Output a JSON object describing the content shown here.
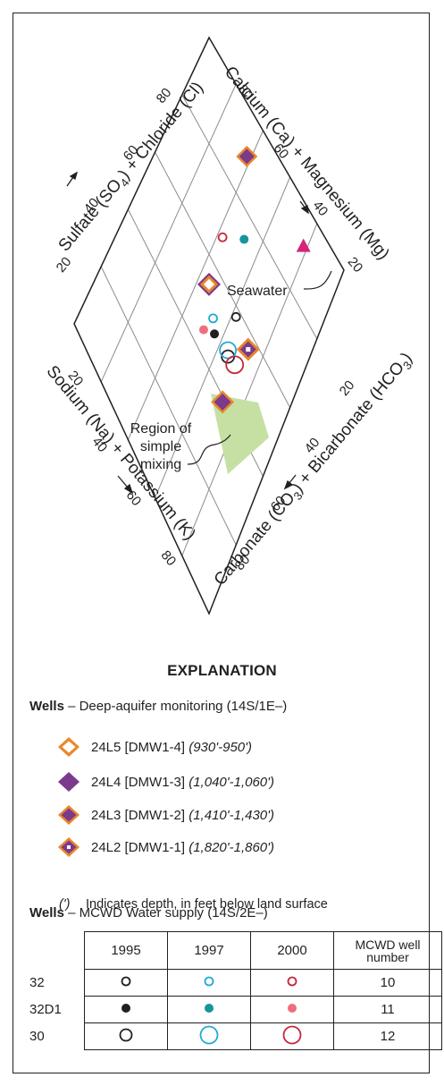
{
  "chart_data": {
    "type": "piper-diamond",
    "axes": {
      "upper_left": "Sulfate (SO4) + Chloride (Cl)",
      "upper_right": "Calcium (Ca) + Magnesium (Mg)",
      "lower_left": "Sodium (Na) + Potassium (K)",
      "lower_right": "Carbonate (CO3) + Bicarbonate (HCO3)"
    },
    "ticks": {
      "upper_left": [
        "20",
        "40",
        "60",
        "80"
      ],
      "upper_right": [
        "80",
        "60",
        "40",
        "20"
      ],
      "lower_left": [
        "20",
        "40",
        "60",
        "80"
      ],
      "lower_right": [
        "20",
        "40",
        "60",
        "80"
      ]
    },
    "annotations": {
      "seawater": "Seawater",
      "mixing": [
        "Region of",
        "simple",
        "mixing"
      ]
    },
    "points": [
      {
        "id": "24L5",
        "symbol": "diamond-open-orange-purple",
        "so4_cl": 52,
        "ca_mg": 52
      },
      {
        "id": "24L4",
        "symbol": "diamond-purple-orange",
        "so4_cl": 38,
        "ca_mg": 28
      },
      {
        "id": "24L3",
        "symbol": "diamond-orange-purple",
        "so4_cl": 85,
        "ca_mg": 57
      },
      {
        "id": "24L2",
        "symbol": "diamond-orange-white-dot",
        "so4_cl": 55,
        "ca_mg": 26
      },
      {
        "id": "Seawater",
        "symbol": "triangle-magenta",
        "so4_cl": 90,
        "ca_mg": 20
      },
      {
        "id": "32-1995",
        "symbol": "circle-small-black",
        "so4_cl": 56,
        "ca_mg": 36
      },
      {
        "id": "32-1997",
        "symbol": "circle-small-cyan",
        "so4_cl": 48,
        "ca_mg": 45
      },
      {
        "id": "32-2000",
        "symbol": "circle-small-red",
        "so4_cl": 64,
        "ca_mg": 54
      },
      {
        "id": "32D1-1995",
        "symbol": "dot-black",
        "so4_cl": 46,
        "ca_mg": 42
      },
      {
        "id": "32D1-1997",
        "symbol": "dot-teal",
        "so4_cl": 71,
        "ca_mg": 45
      },
      {
        "id": "32D1-2000",
        "symbol": "dot-pink",
        "so4_cl": 43,
        "ca_mg": 47
      },
      {
        "id": "30-1995",
        "symbol": "circle-large-black",
        "so4_cl": 47,
        "ca_mg": 33
      },
      {
        "id": "30-1997",
        "symbol": "circle-large-cyan",
        "so4_cl": 48,
        "ca_mg": 34
      },
      {
        "id": "30-2000",
        "symbol": "circle-large-red",
        "so4_cl": 48,
        "ca_mg": 29
      }
    ]
  },
  "explanation": {
    "title": "EXPLANATION",
    "wells1_bold": "Wells",
    "wells1_rest": " – Deep-aquifer monitoring (14S/1E–)",
    "legend": [
      {
        "symbol": "diamond-open-orange-purple",
        "label": "24L5 [DMW1-4]",
        "depth": "(930'-950')"
      },
      {
        "symbol": "diamond-purple-orange",
        "label": "24L4 [DMW1-3]",
        "depth": "(1,040'-1,060')"
      },
      {
        "symbol": "diamond-orange-purple",
        "label": "24L3 [DMW1-2]",
        "depth": "(1,410'-1,430')"
      },
      {
        "symbol": "diamond-orange-white-dot",
        "label": "24L2 [DMW1-1]",
        "depth": "(1,820'-1,860')"
      }
    ],
    "depth_symbol": "(')",
    "depth_note": "Indicates depth, in feet below land surface",
    "wells2_bold": "Wells",
    "wells2_rest": " – MCWD Water supply (14S/2E–)",
    "table": {
      "headers": [
        "1995",
        "1997",
        "2000"
      ],
      "number_header": [
        "MCWD well",
        "number"
      ],
      "rows": [
        {
          "label": "32",
          "number": "10"
        },
        {
          "label": "32D1",
          "number": "11"
        },
        {
          "label": "30",
          "number": "12"
        }
      ]
    },
    "colors": {
      "orange": "#e8882a",
      "purple": "#7b3a8c",
      "magenta": "#d6247a",
      "cyan": "#22a9d6",
      "teal": "#16959c",
      "red": "#c4273a",
      "pink": "#ee6f7c",
      "mixing_fill": "#c6e0a4"
    }
  }
}
